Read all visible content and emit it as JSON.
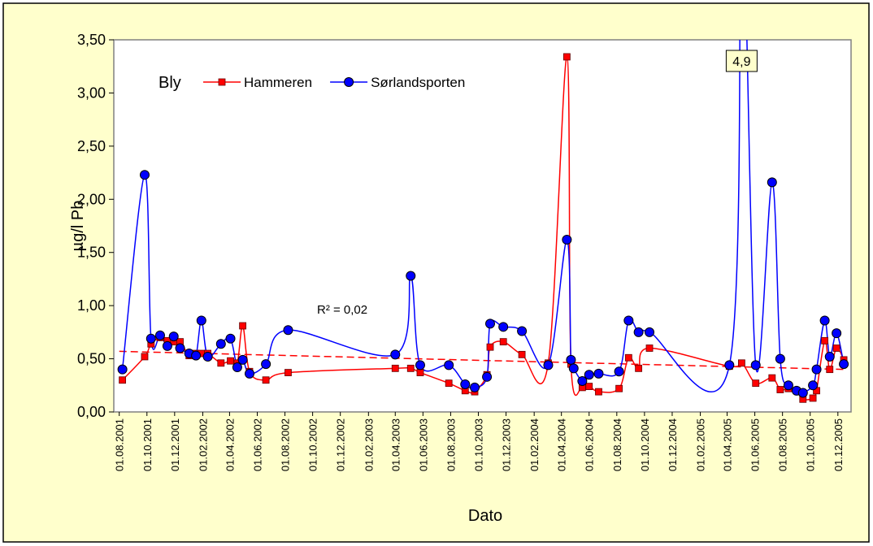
{
  "chart_data": {
    "type": "line",
    "x_label": "Dato",
    "y_label": "µg/l Pb",
    "legend_title": "Bly",
    "legend": "top-left",
    "grid": false,
    "smooth": true,
    "xlim": [
      "2001-07-20",
      "2005-12-30"
    ],
    "ylim": [
      0,
      3.5
    ],
    "yticks": [
      {
        "value": 0,
        "label": "0,00"
      },
      {
        "value": 0.5,
        "label": "0,50"
      },
      {
        "value": 1,
        "label": "1,00"
      },
      {
        "value": 1.5,
        "label": "1,50"
      },
      {
        "value": 2,
        "label": "2,00"
      },
      {
        "value": 2.5,
        "label": "2,50"
      },
      {
        "value": 3,
        "label": "3,00"
      },
      {
        "value": 3.5,
        "label": "3,50"
      }
    ],
    "xticks": [
      {
        "value": "2001-08-01",
        "label": "01.08.2001"
      },
      {
        "value": "2001-10-01",
        "label": "01.10.2001"
      },
      {
        "value": "2001-12-01",
        "label": "01.12.2001"
      },
      {
        "value": "2002-02-01",
        "label": "01.02.2002"
      },
      {
        "value": "2002-04-01",
        "label": "01.04.2002"
      },
      {
        "value": "2002-06-01",
        "label": "01.06.2002"
      },
      {
        "value": "2002-08-01",
        "label": "01.08.2002"
      },
      {
        "value": "2002-10-01",
        "label": "01.10.2002"
      },
      {
        "value": "2002-12-01",
        "label": "01.12.2002"
      },
      {
        "value": "2003-02-01",
        "label": "01.02.2003"
      },
      {
        "value": "2003-04-01",
        "label": "01.04.2003"
      },
      {
        "value": "2003-06-01",
        "label": "01.06.2003"
      },
      {
        "value": "2003-08-01",
        "label": "01.08.2003"
      },
      {
        "value": "2003-10-01",
        "label": "01.10.2003"
      },
      {
        "value": "2003-12-01",
        "label": "01.12.2003"
      },
      {
        "value": "2004-02-01",
        "label": "01.02.2004"
      },
      {
        "value": "2004-04-01",
        "label": "01.04.2004"
      },
      {
        "value": "2004-06-01",
        "label": "01.06.2004"
      },
      {
        "value": "2004-08-01",
        "label": "01.08.2004"
      },
      {
        "value": "2004-10-01",
        "label": "01.10.2004"
      },
      {
        "value": "2004-12-01",
        "label": "01.12.2004"
      },
      {
        "value": "2005-02-01",
        "label": "01.02.2005"
      },
      {
        "value": "2005-04-01",
        "label": "01.04.2005"
      },
      {
        "value": "2005-06-01",
        "label": "01.06.2005"
      },
      {
        "value": "2005-08-01",
        "label": "01.08.2005"
      },
      {
        "value": "2005-10-01",
        "label": "01.10.2005"
      },
      {
        "value": "2005-12-01",
        "label": "01.12.2005"
      }
    ],
    "series": [
      {
        "name": "Hammeren",
        "color": "#ff0000",
        "marker": "square",
        "x": [
          "2001-08-08",
          "2001-09-26",
          "2001-10-10",
          "2001-10-30",
          "2001-11-15",
          "2001-11-29",
          "2001-12-13",
          "2002-01-02",
          "2002-01-17",
          "2002-01-29",
          "2002-02-12",
          "2002-03-13",
          "2002-04-03",
          "2002-04-18",
          "2002-04-30",
          "2002-05-15",
          "2002-06-20",
          "2002-08-08",
          "2003-04-01",
          "2003-05-05",
          "2003-05-26",
          "2003-07-28",
          "2003-09-02",
          "2003-09-23",
          "2003-10-20",
          "2003-10-27",
          "2003-11-25",
          "2004-01-05",
          "2004-03-03",
          "2004-04-13",
          "2004-04-22",
          "2004-05-17",
          "2004-06-01",
          "2004-06-22",
          "2004-08-06",
          "2004-08-27",
          "2004-09-18",
          "2004-10-12",
          "2005-04-06",
          "2005-05-03",
          "2005-06-03",
          "2005-07-09",
          "2005-07-27",
          "2005-08-14",
          "2005-09-01",
          "2005-09-15",
          "2005-10-07",
          "2005-10-15",
          "2005-11-02",
          "2005-11-13",
          "2005-11-28",
          "2005-12-14"
        ],
        "values": [
          0.3,
          0.52,
          0.64,
          0.7,
          0.67,
          0.66,
          0.66,
          0.53,
          0.55,
          0.55,
          0.55,
          0.46,
          0.48,
          0.46,
          0.81,
          0.38,
          0.3,
          0.37,
          0.41,
          0.41,
          0.37,
          0.27,
          0.2,
          0.19,
          0.35,
          0.61,
          0.66,
          0.54,
          0.46,
          3.34,
          0.45,
          0.23,
          0.24,
          0.19,
          0.22,
          0.51,
          0.41,
          0.6,
          0.43,
          0.46,
          0.27,
          0.32,
          0.21,
          0.22,
          0.2,
          0.12,
          0.13,
          0.2,
          0.67,
          0.4,
          0.6,
          0.49
        ]
      },
      {
        "name": "Sørlandsporten",
        "color": "#0000ff",
        "marker": "circle",
        "x": [
          "2001-08-08",
          "2001-09-26",
          "2001-10-10",
          "2001-10-30",
          "2001-11-15",
          "2001-11-29",
          "2001-12-13",
          "2002-01-02",
          "2002-01-17",
          "2002-01-29",
          "2002-02-12",
          "2002-03-13",
          "2002-04-03",
          "2002-04-18",
          "2002-04-30",
          "2002-05-15",
          "2002-06-20",
          "2002-08-08",
          "2003-04-01",
          "2003-05-05",
          "2003-05-26",
          "2003-07-28",
          "2003-09-02",
          "2003-09-23",
          "2003-10-20",
          "2003-10-27",
          "2003-11-25",
          "2004-01-05",
          "2004-03-03",
          "2004-04-13",
          "2004-04-22",
          "2004-04-28",
          "2004-05-17",
          "2004-06-01",
          "2004-06-22",
          "2004-08-06",
          "2004-08-27",
          "2004-09-18",
          "2004-10-12",
          "2005-04-06",
          "2005-05-03",
          "2005-06-03",
          "2005-07-09",
          "2005-07-27",
          "2005-08-14",
          "2005-09-01",
          "2005-09-15",
          "2005-10-07",
          "2005-10-15",
          "2005-11-02",
          "2005-11-13",
          "2005-11-28",
          "2005-12-14"
        ],
        "values": [
          0.4,
          2.23,
          0.69,
          0.72,
          0.62,
          0.71,
          0.6,
          0.55,
          0.53,
          0.86,
          0.52,
          0.64,
          0.69,
          0.42,
          0.49,
          0.36,
          0.45,
          0.77,
          0.54,
          1.28,
          0.44,
          0.44,
          0.26,
          0.23,
          0.33,
          0.83,
          0.8,
          0.76,
          0.44,
          1.62,
          0.49,
          0.41,
          0.29,
          0.35,
          0.36,
          0.38,
          0.86,
          0.75,
          0.75,
          0.44,
          4.9,
          0.44,
          2.16,
          0.5,
          0.25,
          0.2,
          0.18,
          0.25,
          0.4,
          0.86,
          0.52,
          0.74,
          0.45
        ],
        "value_labels": [
          null,
          null,
          null,
          null,
          null,
          null,
          null,
          null,
          null,
          null,
          null,
          null,
          null,
          null,
          null,
          null,
          null,
          null,
          null,
          null,
          null,
          null,
          null,
          null,
          null,
          null,
          null,
          null,
          null,
          null,
          null,
          null,
          null,
          null,
          null,
          null,
          null,
          null,
          null,
          null,
          "4,9",
          null,
          null,
          null,
          null,
          null,
          null,
          null,
          null,
          null,
          null,
          null,
          null
        ]
      }
    ],
    "trendline": {
      "color": "#ff0000",
      "label": "R² = 0,02",
      "x": [
        "2001-08-01",
        "2005-12-14"
      ],
      "values": [
        0.57,
        0.4
      ]
    }
  }
}
